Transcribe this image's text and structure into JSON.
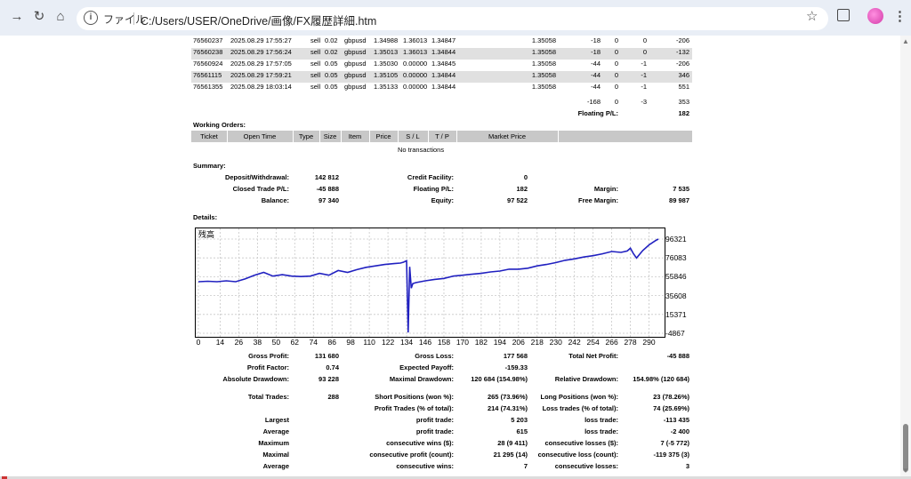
{
  "browser": {
    "scheme_label": "ファイル",
    "url": "C:/Users/USER/OneDrive/画像/FX履歴詳細.htm"
  },
  "orders": [
    {
      "ticket": "76560237",
      "time": "2025.08.29 17:55:27",
      "type": "sell",
      "size": "0.02",
      "item": "gbpusd",
      "price": "1.34988",
      "sl": "1.36013",
      "tp": "1.34847",
      "market": "1.35058",
      "commission": "-18",
      "taxes": "0",
      "swap": "0",
      "profit": "-206"
    },
    {
      "ticket": "76560238",
      "time": "2025.08.29 17:56:24",
      "type": "sell",
      "size": "0.02",
      "item": "gbpusd",
      "price": "1.35013",
      "sl": "1.36013",
      "tp": "1.34844",
      "market": "1.35058",
      "commission": "-18",
      "taxes": "0",
      "swap": "0",
      "profit": "-132"
    },
    {
      "ticket": "76560924",
      "time": "2025.08.29 17:57:05",
      "type": "sell",
      "size": "0.05",
      "item": "gbpusd",
      "price": "1.35030",
      "sl": "0.00000",
      "tp": "1.34845",
      "market": "1.35058",
      "commission": "-44",
      "taxes": "0",
      "swap": "-1",
      "profit": "-206"
    },
    {
      "ticket": "76561115",
      "time": "2025.08.29 17:59:21",
      "type": "sell",
      "size": "0.05",
      "item": "gbpusd",
      "price": "1.35105",
      "sl": "0.00000",
      "tp": "1.34844",
      "market": "1.35058",
      "commission": "-44",
      "taxes": "0",
      "swap": "-1",
      "profit": "346"
    },
    {
      "ticket": "76561355",
      "time": "2025.08.29 18:03:14",
      "type": "sell",
      "size": "0.05",
      "item": "gbpusd",
      "price": "1.35133",
      "sl": "0.00000",
      "tp": "1.34844",
      "market": "1.35058",
      "commission": "-44",
      "taxes": "0",
      "swap": "-1",
      "profit": "551"
    }
  ],
  "totals": {
    "commission": "-168",
    "taxes": "0",
    "swap": "-3",
    "profit": "353"
  },
  "floating": {
    "label": "Floating P/L:",
    "value": "182"
  },
  "working_orders": {
    "title": "Working Orders:",
    "headers": [
      "Ticket",
      "Open Time",
      "Type",
      "Size",
      "Item",
      "Price",
      "S / L",
      "T / P",
      "Market Price"
    ],
    "empty": "No transactions"
  },
  "summary": {
    "title": "Summary:",
    "deposit_label": "Deposit/Withdrawal:",
    "deposit": "142 812",
    "credit_label": "Credit Facility:",
    "credit": "0",
    "closed_label": "Closed Trade P/L:",
    "closed": "-45 888",
    "floating_label": "Floating P/L:",
    "floating": "182",
    "margin_label": "Margin:",
    "margin": "7 535",
    "balance_label": "Balance:",
    "balance": "97 340",
    "equity_label": "Equity:",
    "equity": "97 522",
    "free_label": "Free Margin:",
    "free": "89 987"
  },
  "details": {
    "title": "Details:",
    "gross_profit_label": "Gross Profit:",
    "gross_profit": "131 680",
    "gross_loss_label": "Gross Loss:",
    "gross_loss": "177 568",
    "net_profit_label": "Total Net Profit:",
    "net_profit": "-45 888",
    "profit_factor_label": "Profit Factor:",
    "profit_factor": "0.74",
    "expected_payoff_label": "Expected Payoff:",
    "expected_payoff": "-159.33",
    "abs_dd_label": "Absolute Drawdown:",
    "abs_dd": "93 228",
    "max_dd_label": "Maximal Drawdown:",
    "max_dd": "120 684 (154.98%)",
    "rel_dd_label": "Relative Drawdown:",
    "rel_dd": "154.98% (120 684)",
    "total_trades_label": "Total Trades:",
    "total_trades": "288",
    "short_label": "Short Positions (won %):",
    "short": "265 (73.96%)",
    "long_label": "Long Positions (won %):",
    "long": "23 (78.26%)",
    "profit_trades_label": "Profit Trades (% of total):",
    "profit_trades": "214 (74.31%)",
    "loss_trades_label": "Loss trades (% of total):",
    "loss_trades": "74 (25.69%)",
    "largest_label": "Largest",
    "largest_profit_label": "profit trade:",
    "largest_profit": "5 203",
    "largest_loss_label": "loss trade:",
    "largest_loss": "-113 435",
    "average_label": "Average",
    "average_profit_label": "profit trade:",
    "average_profit": "615",
    "average_loss_label": "loss trade:",
    "average_loss": "-2 400",
    "maximum_label": "Maximum",
    "max_wins_label": "consecutive wins ($):",
    "max_wins": "28 (9 411)",
    "max_losses_label": "consecutive losses ($):",
    "max_losses": "7 (-5 772)",
    "maximal_label": "Maximal",
    "maxp_label": "consecutive profit (count):",
    "maxp": "21 295 (14)",
    "maxl_label": "consecutive loss (count):",
    "maxl": "-119 375 (3)",
    "avg2_label": "Average",
    "avg_wins_label": "consecutive wins:",
    "avg_wins": "7",
    "avg_losses_label": "consecutive losses:",
    "avg_losses": "3"
  },
  "chart_data": {
    "type": "line",
    "title": "残高",
    "y_ticks": [
      "96321",
      "76083",
      "55846",
      "35608",
      "15371",
      "-4867"
    ],
    "x_ticks": [
      "0",
      "14",
      "26",
      "38",
      "50",
      "62",
      "74",
      "86",
      "98",
      "110",
      "122",
      "134",
      "146",
      "158",
      "170",
      "182",
      "194",
      "206",
      "218",
      "230",
      "242",
      "254",
      "266",
      "278",
      "290"
    ],
    "ylim": [
      -4867,
      103000
    ],
    "xlim": [
      0,
      296
    ],
    "color": "#2020c0",
    "series": [
      {
        "x": [
          0,
          6,
          12,
          18,
          24,
          30,
          36,
          42,
          48,
          54,
          60,
          66,
          72,
          78,
          84,
          90,
          96,
          102,
          108,
          114,
          120,
          126,
          130,
          132,
          134,
          135,
          136,
          137,
          138,
          140,
          146,
          152,
          158,
          164,
          170,
          176,
          182,
          188,
          194,
          200,
          206,
          212,
          218,
          224,
          230,
          236,
          242,
          248,
          254,
          260,
          266,
          272,
          276,
          278,
          280,
          282,
          286,
          290,
          294,
          296
        ],
        "y": [
          50500,
          51000,
          50500,
          51500,
          50500,
          53500,
          57500,
          60500,
          56500,
          58000,
          56500,
          56000,
          56500,
          59500,
          57500,
          62500,
          60500,
          63500,
          66000,
          67500,
          69000,
          70000,
          70500,
          71500,
          73000,
          -4000,
          66500,
          43500,
          48500,
          49500,
          51500,
          53000,
          54000,
          56500,
          57500,
          58500,
          59500,
          61000,
          62000,
          64000,
          64000,
          65000,
          67500,
          69000,
          71000,
          73500,
          75000,
          77000,
          78500,
          80500,
          83000,
          82000,
          83500,
          86500,
          80500,
          76000,
          84000,
          90000,
          94500,
          96300
        ]
      }
    ]
  }
}
